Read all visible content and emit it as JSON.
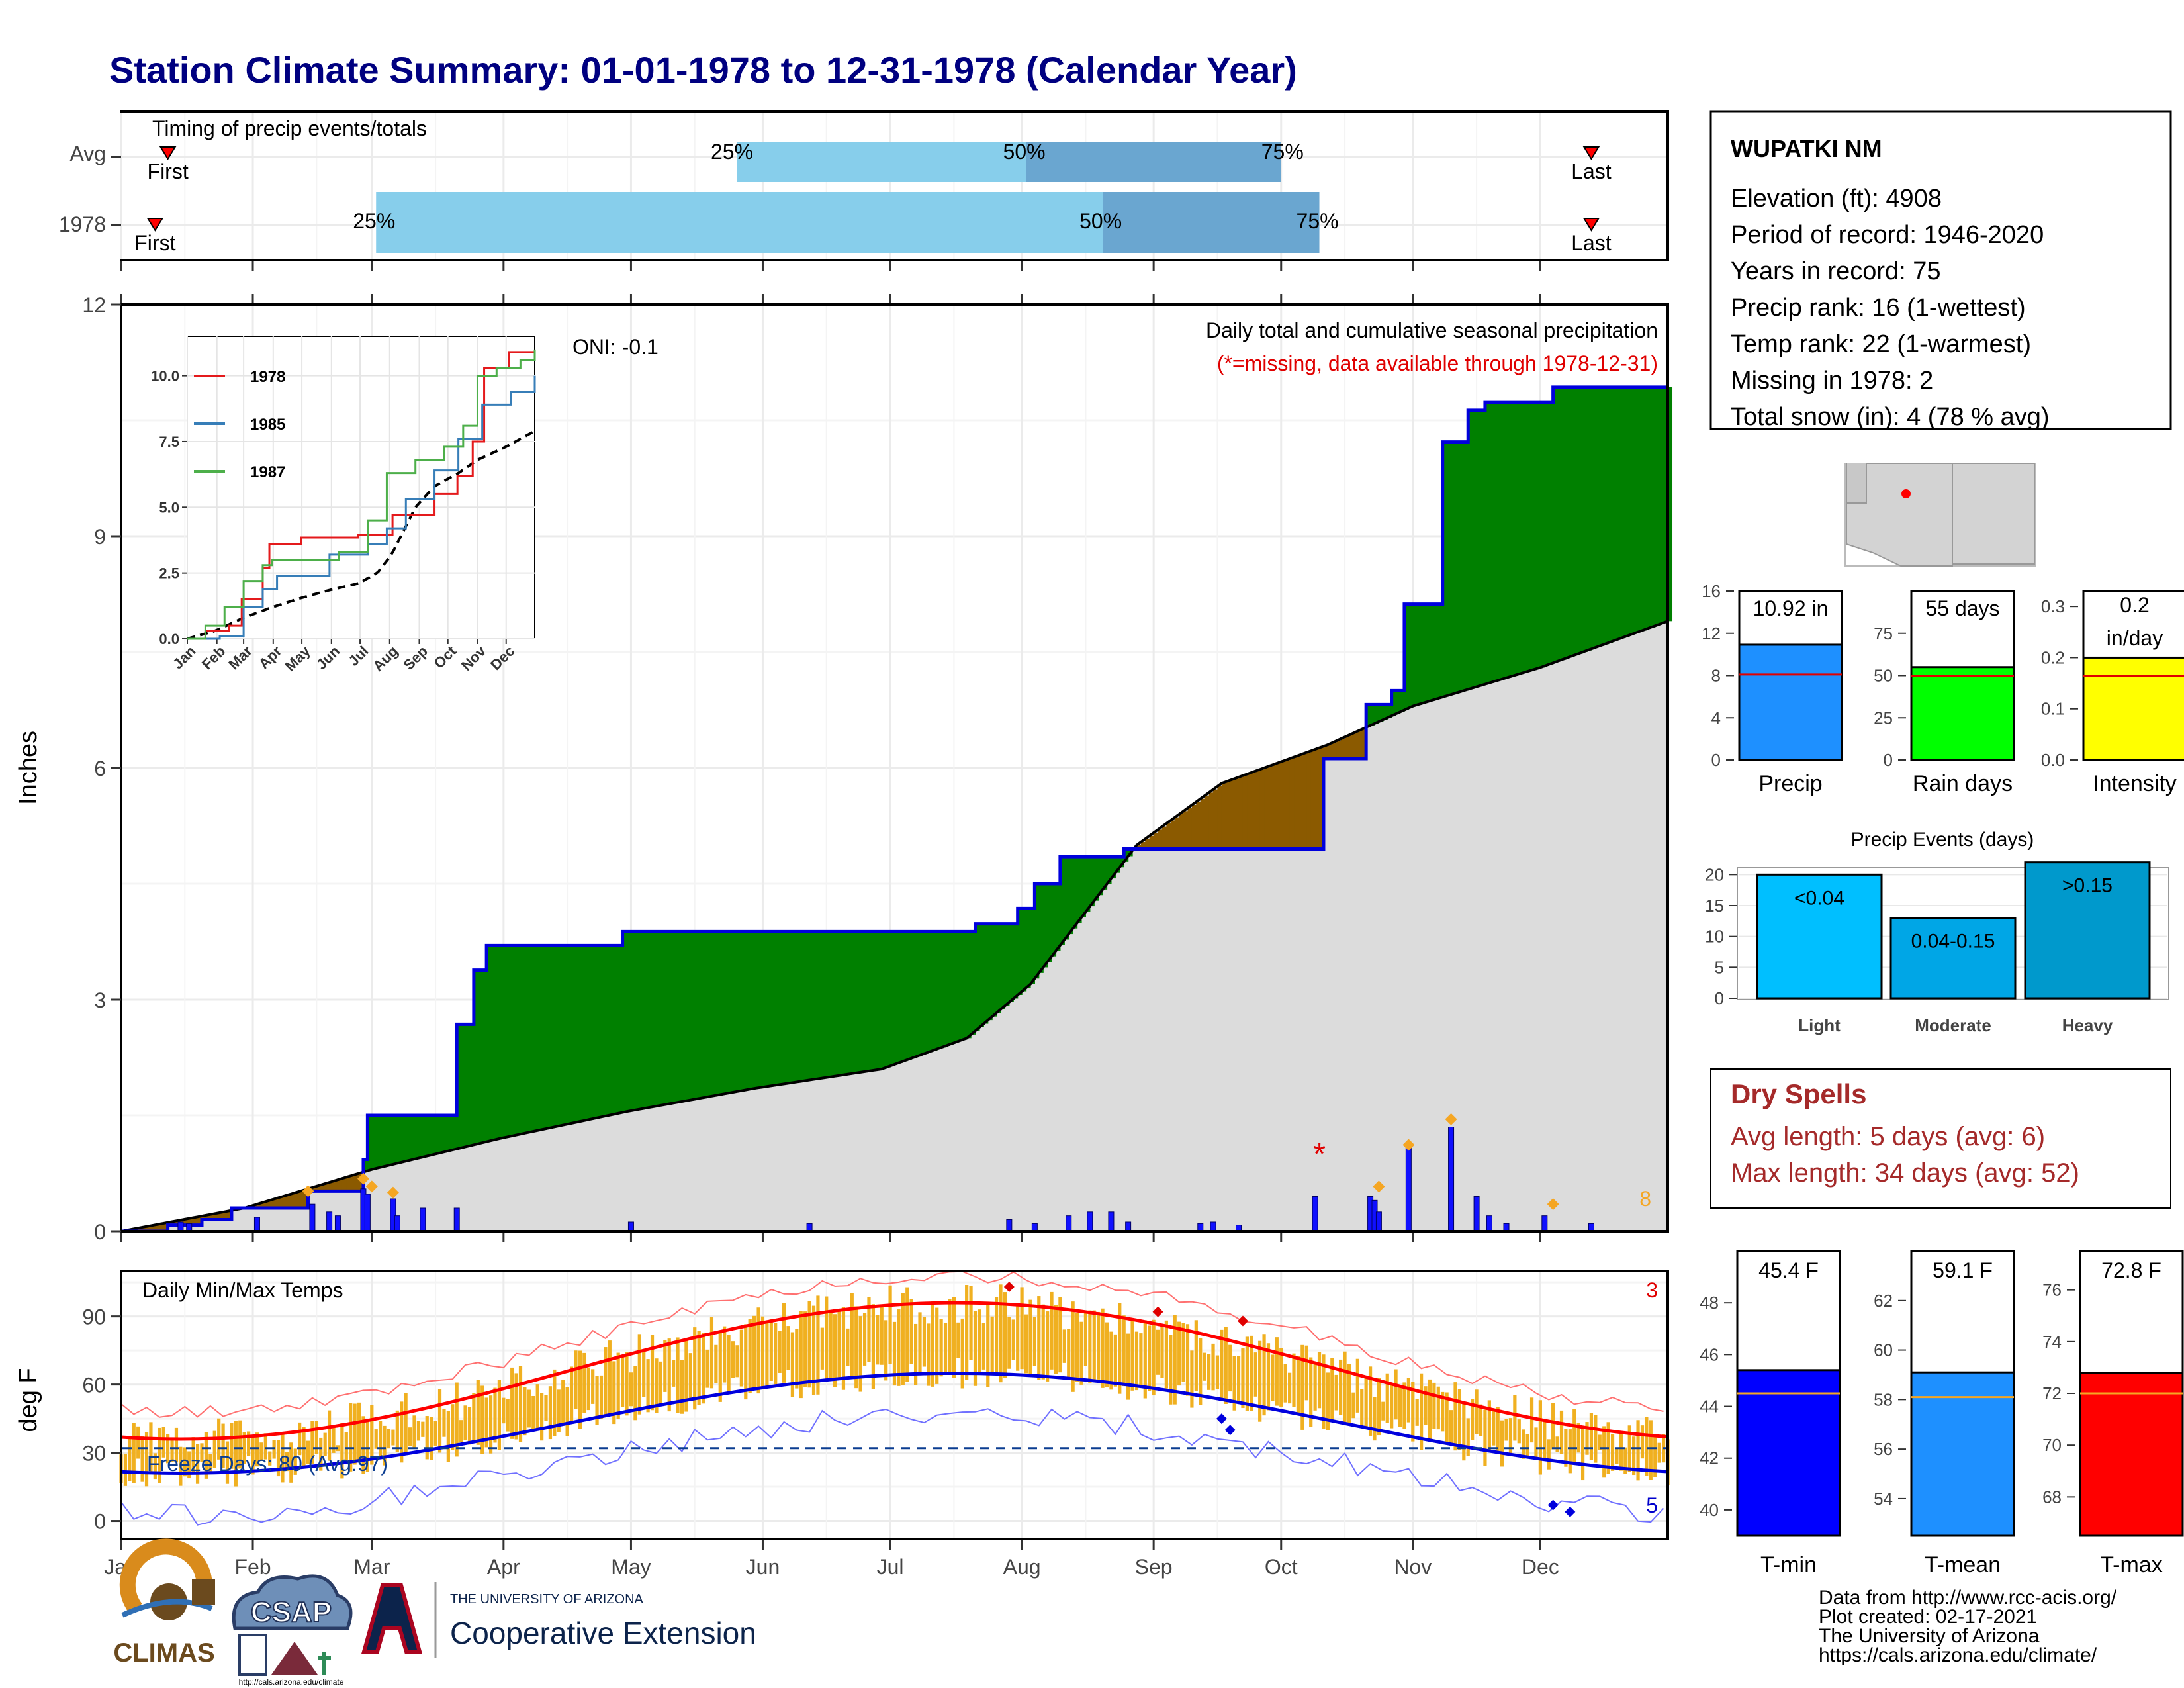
{
  "title": "Station Climate Summary: 01-01-1978 to 12-31-1978 (Calendar Year)",
  "timing": {
    "label": "Timing of precip events/totals",
    "rows": [
      {
        "name": "Avg",
        "p25": "25%",
        "p50": "50%",
        "p75": "75%",
        "first": "First",
        "last": "Last",
        "first_day": 12,
        "p25_day": 146,
        "p50_day": 214,
        "p75_day": 274,
        "last_day": 347
      },
      {
        "name": "1978",
        "p25": "25%",
        "p50": "50%",
        "p75": "75%",
        "first": "First",
        "last": "Last",
        "first_day": 9,
        "p25_day": 61,
        "p50_day": 232,
        "p75_day": 283,
        "last_day": 347
      }
    ]
  },
  "station": {
    "name": "WUPATKI NM",
    "lines": [
      "Elevation (ft): 4908",
      "Period of record: 1946-2020",
      "Years in record: 75",
      "Precip rank: 16 (1-wettest)",
      "Temp rank: 22 (1-warmest)",
      "Missing in 1978: 2",
      "Total snow (in): 4 (78 % avg)"
    ]
  },
  "months": [
    "Jan",
    "Feb",
    "Mar",
    "Apr",
    "May",
    "Jun",
    "Jul",
    "Aug",
    "Sep",
    "Oct",
    "Nov",
    "Dec"
  ],
  "precip": {
    "ylabel": "Inches",
    "yticks": [
      "0",
      "3",
      "6",
      "9",
      "12"
    ],
    "ylim": [
      0,
      12
    ],
    "title": "Daily total and cumulative seasonal precipitation",
    "subtitle": "(*=missing, data available through 1978-12-31)",
    "oni": "ONI: -0.1",
    "snow_count": "8",
    "cumulative_1978": [
      [
        1,
        0
      ],
      [
        12,
        0.08
      ],
      [
        20,
        0.15
      ],
      [
        27,
        0.3
      ],
      [
        45,
        0.52
      ],
      [
        52,
        0.52
      ],
      [
        58,
        0.93
      ],
      [
        59,
        1.5
      ],
      [
        78,
        1.5
      ],
      [
        80,
        2.68
      ],
      [
        84,
        3.38
      ],
      [
        87,
        3.7
      ],
      [
        119,
        3.88
      ],
      [
        202,
        3.98
      ],
      [
        212,
        4.18
      ],
      [
        216,
        4.5
      ],
      [
        222,
        4.85
      ],
      [
        237,
        4.95
      ],
      [
        284,
        6.12
      ],
      [
        294,
        6.82
      ],
      [
        300,
        7.0
      ],
      [
        303,
        8.12
      ],
      [
        312,
        10.22
      ],
      [
        314,
        10.22
      ],
      [
        318,
        10.63
      ],
      [
        322,
        10.73
      ],
      [
        338,
        10.93
      ],
      [
        365,
        10.93
      ]
    ],
    "average_cumulative": [
      [
        1,
        0
      ],
      [
        30,
        0.3
      ],
      [
        60,
        0.8
      ],
      [
        90,
        1.2
      ],
      [
        120,
        1.55
      ],
      [
        150,
        1.85
      ],
      [
        180,
        2.1
      ],
      [
        200,
        2.5
      ],
      [
        215,
        3.2
      ],
      [
        240,
        5.0
      ],
      [
        260,
        5.8
      ],
      [
        285,
        6.3
      ],
      [
        305,
        6.8
      ],
      [
        335,
        7.3
      ],
      [
        365,
        7.9
      ]
    ],
    "daily": [
      [
        15,
        0.12
      ],
      [
        17,
        0.1
      ],
      [
        33,
        0.18
      ],
      [
        46,
        0.35
      ],
      [
        50,
        0.25
      ],
      [
        52,
        0.2
      ],
      [
        58,
        0.55
      ],
      [
        59,
        0.48
      ],
      [
        65,
        0.42
      ],
      [
        66,
        0.2
      ],
      [
        72,
        0.3
      ],
      [
        80,
        0.3
      ],
      [
        121,
        0.12
      ],
      [
        163,
        0.1
      ],
      [
        210,
        0.15
      ],
      [
        216,
        0.1
      ],
      [
        224,
        0.2
      ],
      [
        229,
        0.25
      ],
      [
        234,
        0.25
      ],
      [
        238,
        0.12
      ],
      [
        255,
        0.1
      ],
      [
        258,
        0.12
      ],
      [
        264,
        0.08
      ],
      [
        282,
        0.45
      ],
      [
        295,
        0.45
      ],
      [
        296,
        0.4
      ],
      [
        297,
        0.25
      ],
      [
        304,
        1.08
      ],
      [
        314,
        1.35
      ],
      [
        320,
        0.45
      ],
      [
        323,
        0.2
      ],
      [
        327,
        0.1
      ],
      [
        336,
        0.2
      ],
      [
        347,
        0.1
      ]
    ],
    "missing_marker_day": 283,
    "missing_marker_value": 1.0
  },
  "inset": {
    "yticks": [
      "0.0",
      "2.5",
      "5.0",
      "7.5",
      "10.0"
    ],
    "months": [
      "Jan",
      "Feb",
      "Mar",
      "Apr",
      "May",
      "Jun",
      "Jul",
      "Aug",
      "Sep",
      "Oct",
      "Nov",
      "Dec"
    ],
    "series": [
      {
        "name": "1978",
        "color": "#e41a1c",
        "values": [
          [
            1,
            0
          ],
          [
            20,
            0.3
          ],
          [
            45,
            0.5
          ],
          [
            58,
            1.5
          ],
          [
            80,
            2.7
          ],
          [
            87,
            3.6
          ],
          [
            120,
            3.85
          ],
          [
            180,
            3.95
          ],
          [
            216,
            4.7
          ],
          [
            260,
            5.5
          ],
          [
            284,
            6.2
          ],
          [
            300,
            7.5
          ],
          [
            312,
            10.3
          ],
          [
            338,
            10.9
          ],
          [
            365,
            10.9
          ]
        ]
      },
      {
        "name": "1985",
        "color": "#377eb8",
        "values": [
          [
            1,
            0
          ],
          [
            35,
            0.1
          ],
          [
            60,
            1.2
          ],
          [
            80,
            1.9
          ],
          [
            95,
            2.4
          ],
          [
            150,
            3.2
          ],
          [
            190,
            3.6
          ],
          [
            210,
            4.2
          ],
          [
            230,
            5.3
          ],
          [
            260,
            6.4
          ],
          [
            285,
            7.6
          ],
          [
            310,
            8.9
          ],
          [
            340,
            9.4
          ],
          [
            365,
            10.0
          ]
        ]
      },
      {
        "name": "1987",
        "color": "#4daf4a",
        "values": [
          [
            1,
            0
          ],
          [
            20,
            0.5
          ],
          [
            40,
            1.2
          ],
          [
            60,
            2.2
          ],
          [
            80,
            2.8
          ],
          [
            90,
            3.0
          ],
          [
            160,
            3.3
          ],
          [
            190,
            4.5
          ],
          [
            210,
            6.3
          ],
          [
            240,
            6.8
          ],
          [
            270,
            7.3
          ],
          [
            290,
            8.1
          ],
          [
            305,
            10.0
          ],
          [
            325,
            10.3
          ],
          [
            350,
            10.6
          ],
          [
            365,
            11.0
          ]
        ]
      }
    ]
  },
  "mini_bars": [
    {
      "label": "Precip",
      "value_label": "10.92 in",
      "value": 10.92,
      "avg": 8.1,
      "yticks": [
        "0",
        "4",
        "8",
        "12",
        "16"
      ],
      "ymax": 16,
      "color": "#1e90ff"
    },
    {
      "label": "Rain days",
      "value_label": "55 days",
      "value": 55,
      "avg": 50,
      "yticks": [
        "0",
        "25",
        "50",
        "75"
      ],
      "ymax": 100,
      "color": "#00ff00"
    },
    {
      "label": "Intensity",
      "value_label": "0.2\nin/day",
      "value": 0.2,
      "avg": 0.165,
      "yticks": [
        "0.0",
        "0.1",
        "0.2",
        "0.3"
      ],
      "ymax": 0.33,
      "color": "#ffff00"
    }
  ],
  "events": {
    "title": "Precip Events (days)",
    "yticks": [
      "0",
      "5",
      "10",
      "15",
      "20"
    ],
    "ymax": 21,
    "categories": [
      "Light",
      "Moderate",
      "Heavy"
    ],
    "bar_labels": [
      "<0.04",
      "0.04-0.15",
      ">0.15"
    ],
    "values": [
      20,
      13,
      22
    ],
    "colors": [
      "#00bfff",
      "#00a6e6",
      "#0099cc"
    ]
  },
  "dry_spells": {
    "title": "Dry Spells",
    "avg_line": "Avg length: 5 days (avg: 6)",
    "max_line": "Max length: 34 days (avg: 52)"
  },
  "temps": {
    "title": "Daily Min/Max Temps",
    "ylabel": "deg F",
    "yticks": [
      "0",
      "30",
      "60",
      "90"
    ],
    "ylim": [
      -8,
      110
    ],
    "freeze_text": "Freeze Days: 80 (Avg:97)",
    "freeze_line": 32,
    "record_high_count": "3",
    "record_low_count": "5"
  },
  "temp_bars": [
    {
      "label": "T-min",
      "value_label": "45.4 F",
      "value": 45.4,
      "avg": 44.5,
      "yticks": [
        "40",
        "42",
        "44",
        "46",
        "48"
      ],
      "ymin": 39,
      "ymax": 50,
      "color": "#0000ff"
    },
    {
      "label": "T-mean",
      "value_label": "59.1 F",
      "value": 59.1,
      "avg": 58.1,
      "yticks": [
        "54",
        "56",
        "58",
        "60",
        "62"
      ],
      "ymin": 52.5,
      "ymax": 64,
      "color": "#1e90ff"
    },
    {
      "label": "T-max",
      "value_label": "72.8 F",
      "value": 72.8,
      "avg": 72.0,
      "yticks": [
        "68",
        "70",
        "72",
        "74",
        "76"
      ],
      "ymin": 66.5,
      "ymax": 77.5,
      "color": "#ff0000"
    }
  ],
  "logos": {
    "climas": "CLIMAS",
    "csap": "CSAP",
    "csap_url": "http://cals.arizona.edu/climate",
    "ua_small": "THE UNIVERSITY OF ARIZONA",
    "ua_big": "Cooperative Extension"
  },
  "credits": [
    "Data from http://www.rcc-acis.org/",
    "Plot created: 02-17-2021",
    "The University of Arizona",
    "https://cals.arizona.edu/climate/"
  ]
}
